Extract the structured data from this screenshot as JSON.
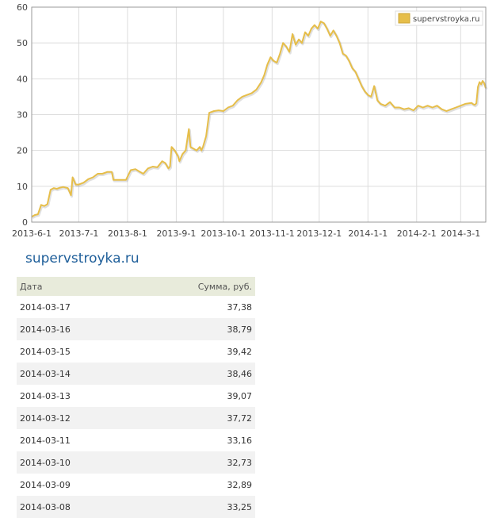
{
  "chart_data": {
    "type": "line",
    "series": [
      {
        "name": "supervstroyka.ru",
        "color": "#e6be4a",
        "points": [
          [
            "2013-06-01",
            1.5
          ],
          [
            "2013-06-03",
            2.0
          ],
          [
            "2013-06-05",
            2.2
          ],
          [
            "2013-06-07",
            4.8
          ],
          [
            "2013-06-09",
            4.5
          ],
          [
            "2013-06-11",
            5.0
          ],
          [
            "2013-06-13",
            9.0
          ],
          [
            "2013-06-15",
            9.5
          ],
          [
            "2013-06-17",
            9.3
          ],
          [
            "2013-06-19",
            9.6
          ],
          [
            "2013-06-21",
            9.8
          ],
          [
            "2013-06-24",
            9.5
          ],
          [
            "2013-06-26",
            7.5
          ],
          [
            "2013-06-27",
            12.5
          ],
          [
            "2013-06-29",
            10.5
          ],
          [
            "2013-07-01",
            10.5
          ],
          [
            "2013-07-04",
            11.0
          ],
          [
            "2013-07-07",
            12.0
          ],
          [
            "2013-07-10",
            12.5
          ],
          [
            "2013-07-13",
            13.5
          ],
          [
            "2013-07-16",
            13.5
          ],
          [
            "2013-07-19",
            14.0
          ],
          [
            "2013-07-22",
            14.0
          ],
          [
            "2013-07-23",
            11.8
          ],
          [
            "2013-07-27",
            11.8
          ],
          [
            "2013-07-31",
            11.8
          ],
          [
            "2013-08-03",
            14.5
          ],
          [
            "2013-08-06",
            14.8
          ],
          [
            "2013-08-09",
            14.0
          ],
          [
            "2013-08-11",
            13.5
          ],
          [
            "2013-08-14",
            15.0
          ],
          [
            "2013-08-17",
            15.5
          ],
          [
            "2013-08-20",
            15.3
          ],
          [
            "2013-08-23",
            17.0
          ],
          [
            "2013-08-25",
            16.5
          ],
          [
            "2013-08-27",
            15.0
          ],
          [
            "2013-08-28",
            15.5
          ],
          [
            "2013-08-29",
            21.0
          ],
          [
            "2013-08-31",
            20.0
          ],
          [
            "2013-09-02",
            18.5
          ],
          [
            "2013-09-03",
            17.0
          ],
          [
            "2013-09-05",
            19.0
          ],
          [
            "2013-09-07",
            20.0
          ],
          [
            "2013-09-08",
            23.0
          ],
          [
            "2013-09-09",
            26.0
          ],
          [
            "2013-09-10",
            21.0
          ],
          [
            "2013-09-12",
            20.5
          ],
          [
            "2013-09-14",
            20.0
          ],
          [
            "2013-09-16",
            21.0
          ],
          [
            "2013-09-17",
            20.0
          ],
          [
            "2013-09-18",
            21.0
          ],
          [
            "2013-09-20",
            24.0
          ],
          [
            "2013-09-22",
            30.5
          ],
          [
            "2013-09-25",
            31.0
          ],
          [
            "2013-09-28",
            31.2
          ],
          [
            "2013-10-01",
            31.0
          ],
          [
            "2013-10-04",
            32.0
          ],
          [
            "2013-10-07",
            32.5
          ],
          [
            "2013-10-10",
            34.0
          ],
          [
            "2013-10-13",
            35.0
          ],
          [
            "2013-10-16",
            35.5
          ],
          [
            "2013-10-19",
            36.0
          ],
          [
            "2013-10-22",
            37.0
          ],
          [
            "2013-10-25",
            39.0
          ],
          [
            "2013-10-27",
            41.0
          ],
          [
            "2013-10-29",
            44.0
          ],
          [
            "2013-10-31",
            46.0
          ],
          [
            "2013-11-02",
            45.0
          ],
          [
            "2013-11-04",
            44.5
          ],
          [
            "2013-11-06",
            47.0
          ],
          [
            "2013-11-08",
            50.0
          ],
          [
            "2013-11-10",
            49.0
          ],
          [
            "2013-11-12",
            47.5
          ],
          [
            "2013-11-14",
            52.5
          ],
          [
            "2013-11-16",
            49.5
          ],
          [
            "2013-11-18",
            51.0
          ],
          [
            "2013-11-20",
            50.0
          ],
          [
            "2013-11-22",
            53.0
          ],
          [
            "2013-11-24",
            52.0
          ],
          [
            "2013-11-26",
            54.0
          ],
          [
            "2013-11-28",
            55.0
          ],
          [
            "2013-11-30",
            54.0
          ],
          [
            "2013-12-02",
            56.0
          ],
          [
            "2013-12-04",
            55.5
          ],
          [
            "2013-12-06",
            54.0
          ],
          [
            "2013-12-08",
            52.0
          ],
          [
            "2013-12-10",
            53.5
          ],
          [
            "2013-12-12",
            52.0
          ],
          [
            "2013-12-14",
            50.0
          ],
          [
            "2013-12-16",
            47.0
          ],
          [
            "2013-12-18",
            46.5
          ],
          [
            "2013-12-20",
            45.0
          ],
          [
            "2013-12-22",
            43.0
          ],
          [
            "2013-12-24",
            42.0
          ],
          [
            "2013-12-26",
            40.0
          ],
          [
            "2013-12-28",
            38.0
          ],
          [
            "2013-12-30",
            36.5
          ],
          [
            "2014-01-01",
            35.5
          ],
          [
            "2014-01-03",
            35.0
          ],
          [
            "2014-01-05",
            38.0
          ],
          [
            "2014-01-07",
            34.0
          ],
          [
            "2014-01-09",
            33.0
          ],
          [
            "2014-01-12",
            32.5
          ],
          [
            "2014-01-15",
            33.5
          ],
          [
            "2014-01-18",
            32.0
          ],
          [
            "2014-01-21",
            32.0
          ],
          [
            "2014-01-24",
            31.5
          ],
          [
            "2014-01-27",
            31.8
          ],
          [
            "2014-01-30",
            31.2
          ],
          [
            "2014-02-02",
            32.5
          ],
          [
            "2014-02-05",
            32.0
          ],
          [
            "2014-02-08",
            32.5
          ],
          [
            "2014-02-11",
            32.0
          ],
          [
            "2014-02-14",
            32.5
          ],
          [
            "2014-02-17",
            31.5
          ],
          [
            "2014-02-20",
            31.0
          ],
          [
            "2014-02-23",
            31.5
          ],
          [
            "2014-02-26",
            32.0
          ],
          [
            "2014-03-01",
            32.5
          ],
          [
            "2014-03-04",
            33.0
          ],
          [
            "2014-03-07",
            33.2
          ],
          [
            "2014-03-08",
            33.25
          ],
          [
            "2014-03-09",
            32.89
          ],
          [
            "2014-03-10",
            32.73
          ],
          [
            "2014-03-11",
            33.16
          ],
          [
            "2014-03-12",
            37.72
          ],
          [
            "2014-03-13",
            39.07
          ],
          [
            "2014-03-14",
            38.46
          ],
          [
            "2014-03-15",
            39.42
          ],
          [
            "2014-03-16",
            38.79
          ],
          [
            "2014-03-17",
            37.38
          ]
        ]
      }
    ],
    "x_range": [
      "2013-06-01",
      "2014-03-17"
    ],
    "x_ticks": [
      {
        "date": "2013-06-01",
        "label": "2013-6-1"
      },
      {
        "date": "2013-07-01",
        "label": "2013-7-1"
      },
      {
        "date": "2013-08-01",
        "label": "2013-8-1"
      },
      {
        "date": "2013-09-01",
        "label": "2013-9-1"
      },
      {
        "date": "2013-10-01",
        "label": "2013-10-1"
      },
      {
        "date": "2013-11-01",
        "label": "2013-11-1"
      },
      {
        "date": "2013-12-01",
        "label": "2013-12-1"
      },
      {
        "date": "2014-01-01",
        "label": "2014-1-1"
      },
      {
        "date": "2014-02-01",
        "label": "2014-2-1"
      },
      {
        "date": "2014-03-01",
        "label": "2014-3-1"
      }
    ],
    "ylim": [
      0,
      60
    ],
    "y_ticks": [
      0,
      10,
      20,
      30,
      40,
      50,
      60
    ],
    "grid": true,
    "legend": {
      "position": "top-right"
    }
  },
  "site_title": "supervstroyka.ru",
  "table": {
    "headers": {
      "date": "Дата",
      "sum": "Сумма, руб."
    },
    "rows": [
      {
        "date": "2014-03-17",
        "sum": "37,38"
      },
      {
        "date": "2014-03-16",
        "sum": "38,79"
      },
      {
        "date": "2014-03-15",
        "sum": "39,42"
      },
      {
        "date": "2014-03-14",
        "sum": "38,46"
      },
      {
        "date": "2014-03-13",
        "sum": "39,07"
      },
      {
        "date": "2014-03-12",
        "sum": "37,72"
      },
      {
        "date": "2014-03-11",
        "sum": "33,16"
      },
      {
        "date": "2014-03-10",
        "sum": "32,73"
      },
      {
        "date": "2014-03-09",
        "sum": "32,89"
      },
      {
        "date": "2014-03-08",
        "sum": "33,25"
      }
    ]
  }
}
